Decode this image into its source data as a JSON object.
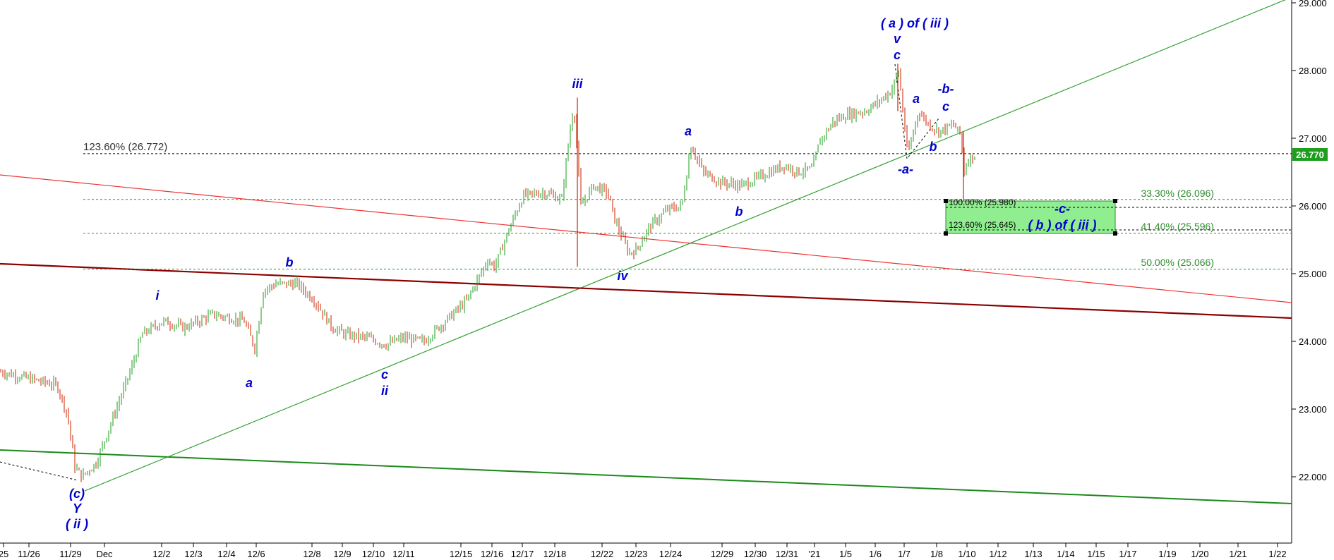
{
  "chart_data": {
    "type": "candlestick",
    "price_axis": {
      "range": [
        21.2,
        29.0
      ],
      "ticks": [
        "29.000",
        "28.000",
        "27.000",
        "26.000",
        "25.000",
        "24.000",
        "23.000",
        "22.000"
      ],
      "values": [
        29,
        28,
        27,
        26,
        25,
        24,
        23,
        22
      ]
    },
    "last_price": {
      "label": "26.770",
      "value": 26.77,
      "color": "#1e9e1e"
    },
    "date_ticks": [
      "25",
      "11/26",
      "11/29",
      "Dec",
      "12/2",
      "12/3",
      "12/4",
      "12/6",
      "12/8",
      "12/9",
      "12/10",
      "12/11",
      "12/15",
      "12/16",
      "12/17",
      "12/18",
      "12/22",
      "12/23",
      "12/24",
      "12/29",
      "12/30",
      "12/31",
      "'21",
      "1/5",
      "1/6",
      "1/7",
      "1/8",
      "1/10",
      "1/12",
      "1/13",
      "1/14",
      "1/15",
      "1/17",
      "1/19",
      "1/20",
      "1/21",
      "1/22"
    ],
    "fib_levels": [
      {
        "label": "123.60% (26.772)",
        "value": 26.772,
        "style": "black"
      },
      {
        "label": "33.30% (26.096)",
        "value": 26.096,
        "style": "green"
      },
      {
        "label": "41.40% (25.596)",
        "value": 25.596,
        "style": "green"
      },
      {
        "label": "50.00% (25.066)",
        "value": 25.066,
        "style": "green"
      }
    ],
    "target_box": {
      "label_top": "100.00% (25.980)",
      "label_bottom": "123.60% (25.645)",
      "top": 26.09,
      "bottom": 25.59,
      "value_top": 25.98,
      "value_bottom": 25.645,
      "color": "#90ee90",
      "wave_c": "-c-",
      "wave_b": "( b ) of ( iii )"
    },
    "wave_labels": {
      "c_low": "(c)",
      "Y": "Y",
      "ii_paren": "( ii )",
      "i": "i",
      "a1": "a",
      "b1": "b",
      "c2": "c",
      "ii": "ii",
      "iii": "iii",
      "iv": "iv",
      "a3": "a",
      "b3": "b",
      "a_of_iii": "( a ) of ( iii )",
      "v": "v",
      "c_top": "c",
      "minus_a": "-a-",
      "a4": "a",
      "b4": "b",
      "minus_b": "-b-",
      "c4": "c"
    },
    "colors": {
      "up": "#1a9e1a",
      "down": "#cc2200",
      "green_line": "#33a033",
      "red_line": "#ee3333",
      "dark_red": "#8b0000",
      "wave": "#0000cc"
    }
  }
}
